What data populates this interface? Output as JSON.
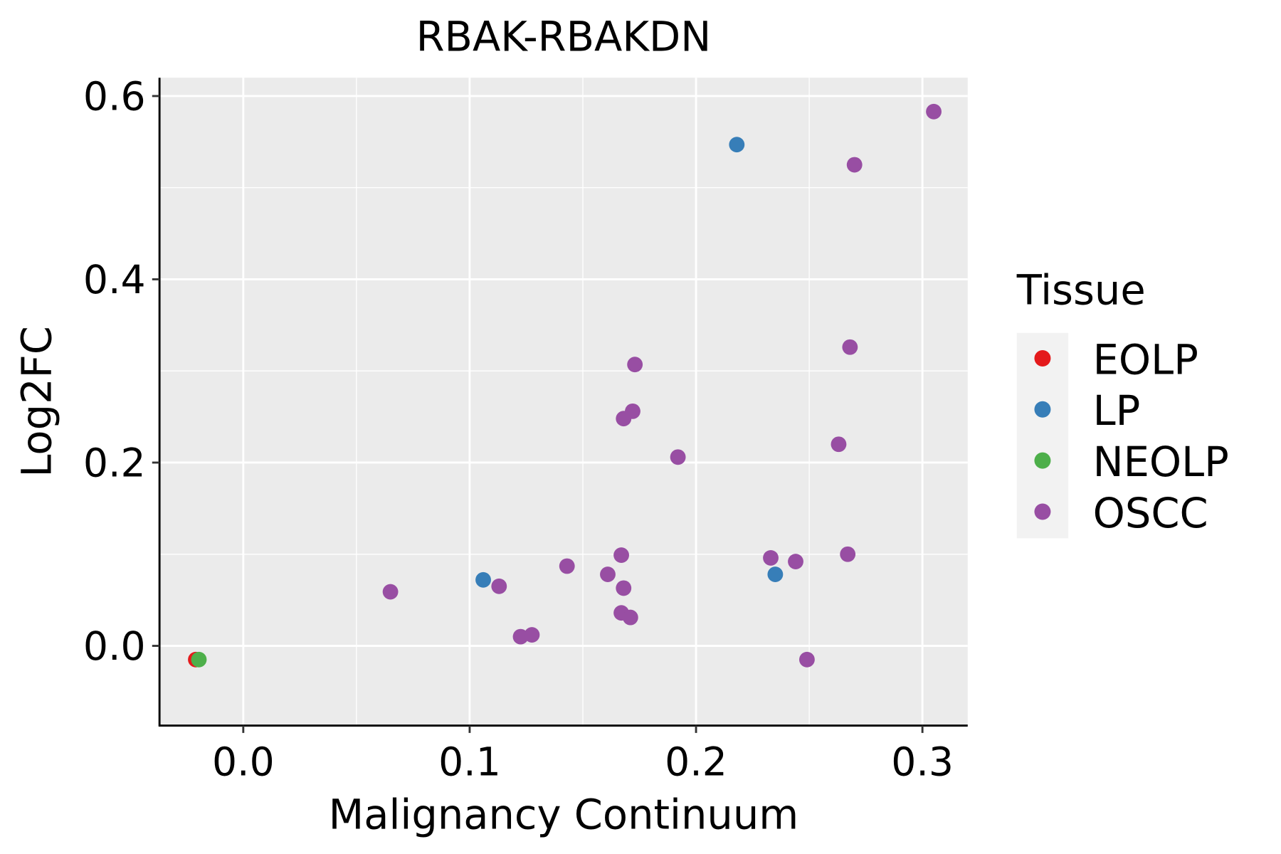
{
  "chart_data": {
    "type": "scatter",
    "title": "RBAK-RBAKDN",
    "xlabel": "Malignancy Continuum",
    "ylabel": "Log2FC",
    "xlim": [
      -0.037,
      0.32
    ],
    "ylim": [
      -0.087,
      0.62
    ],
    "x_ticks": [
      0.0,
      0.1,
      0.2,
      0.3
    ],
    "x_tick_labels": [
      "0.0",
      "0.1",
      "0.2",
      "0.3"
    ],
    "y_ticks": [
      0.0,
      0.2,
      0.4,
      0.6
    ],
    "y_tick_labels": [
      "0.0",
      "0.2",
      "0.4",
      "0.6"
    ],
    "grid": true,
    "legend": {
      "title": "Tissue",
      "position": "right"
    },
    "series": [
      {
        "name": "EOLP",
        "color": "#E41A1C",
        "points": [
          [
            -0.021,
            -0.015
          ]
        ]
      },
      {
        "name": "LP",
        "color": "#377EB8",
        "points": [
          [
            0.218,
            0.547
          ],
          [
            0.106,
            0.072
          ],
          [
            0.235,
            0.078
          ]
        ]
      },
      {
        "name": "NEOLP",
        "color": "#4DAF4A",
        "points": [
          [
            -0.0196,
            -0.015
          ]
        ]
      },
      {
        "name": "OSCC",
        "color": "#984EA3",
        "points": [
          [
            0.305,
            0.583
          ],
          [
            0.27,
            0.525
          ],
          [
            0.268,
            0.326
          ],
          [
            0.173,
            0.307
          ],
          [
            0.172,
            0.256
          ],
          [
            0.168,
            0.248
          ],
          [
            0.192,
            0.206
          ],
          [
            0.263,
            0.22
          ],
          [
            0.065,
            0.059
          ],
          [
            0.113,
            0.065
          ],
          [
            0.143,
            0.087
          ],
          [
            0.161,
            0.078
          ],
          [
            0.167,
            0.099
          ],
          [
            0.168,
            0.063
          ],
          [
            0.167,
            0.036
          ],
          [
            0.171,
            0.031
          ],
          [
            0.1225,
            0.01
          ],
          [
            0.1275,
            0.012
          ],
          [
            0.233,
            0.096
          ],
          [
            0.244,
            0.092
          ],
          [
            0.267,
            0.1
          ],
          [
            0.249,
            -0.015
          ]
        ]
      }
    ]
  }
}
